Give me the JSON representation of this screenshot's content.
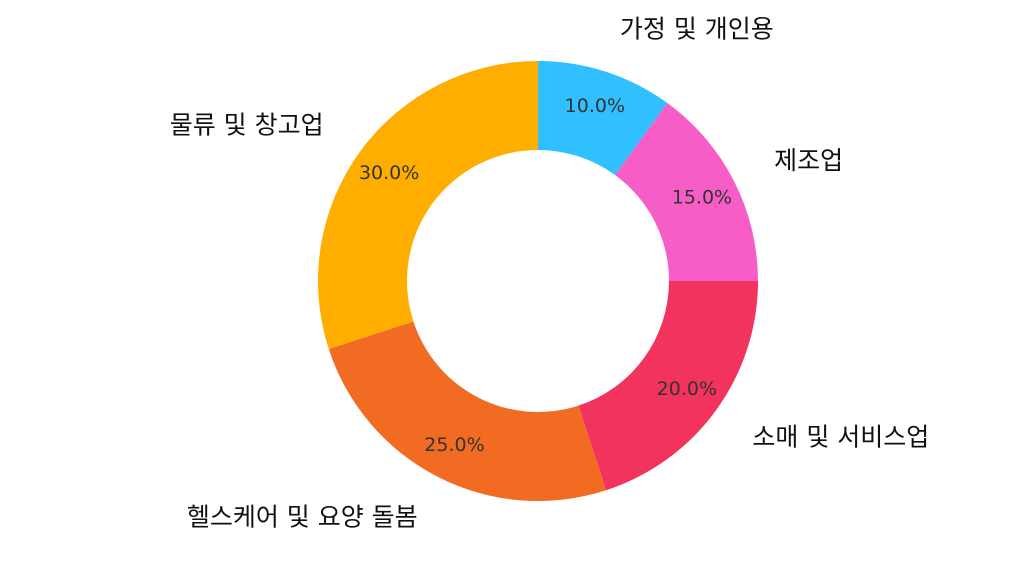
{
  "chart_data": {
    "type": "pie",
    "donut": true,
    "start_angle_deg": 90,
    "direction": "clockwise",
    "slices": [
      {
        "label": "가정 및 개인용",
        "value": 10.0,
        "pct_text": "10.0%",
        "color": "#30BFFF"
      },
      {
        "label": "제조업",
        "value": 15.0,
        "pct_text": "15.0%",
        "color": "#F75DC6"
      },
      {
        "label": "소매 및 서비스업",
        "value": 20.0,
        "pct_text": "20.0%",
        "color": "#F2335E"
      },
      {
        "label": "헬스케어 및 요양 돌봄",
        "value": 25.0,
        "pct_text": "25.0%",
        "color": "#F26B22"
      },
      {
        "label": "물류 및 창고업",
        "value": 30.0,
        "pct_text": "30.0%",
        "color": "#FFAE00"
      }
    ]
  }
}
